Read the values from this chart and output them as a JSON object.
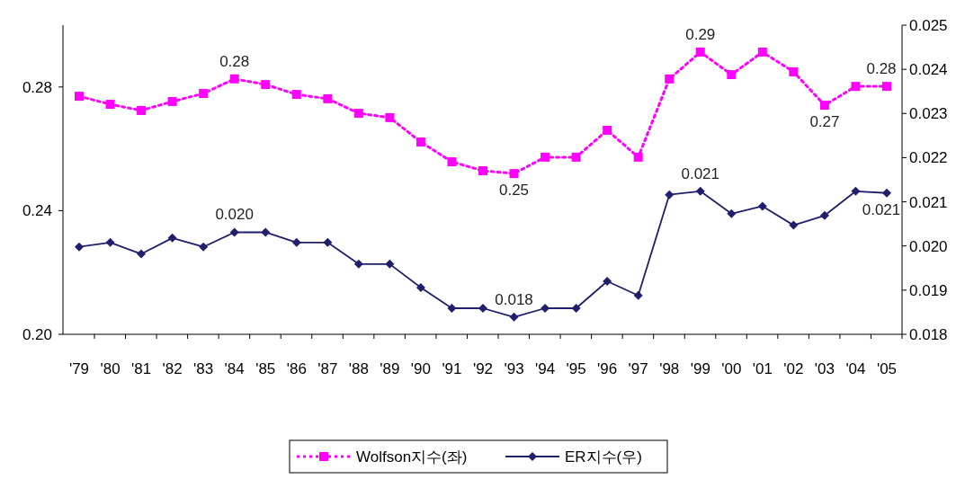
{
  "chart_data": {
    "type": "line",
    "categories": [
      "'79",
      "'80",
      "'81",
      "'82",
      "'83",
      "'84",
      "'85",
      "'86",
      "'87",
      "'88",
      "'89",
      "'90",
      "'91",
      "'92",
      "'93",
      "'94",
      "'95",
      "'96",
      "'97",
      "'98",
      "'99",
      "'00",
      "'01",
      "'02",
      "'03",
      "'04",
      "'05"
    ],
    "series": [
      {
        "name": "Wolfson지수(좌)",
        "color": "#ff00ff",
        "marker": "square",
        "line_style": "dotted",
        "values": [
          0.277,
          0.2744,
          0.2724,
          0.2753,
          0.2779,
          0.2826,
          0.2808,
          0.2776,
          0.2762,
          0.2715,
          0.2701,
          0.2622,
          0.2558,
          0.2529,
          0.252,
          0.2573,
          0.2573,
          0.266,
          0.2573,
          0.2826,
          0.2913,
          0.284,
          0.2913,
          0.2849,
          0.2741,
          0.2802,
          0.2802
        ],
        "value_labels": [
          null,
          null,
          null,
          null,
          null,
          "0.28",
          null,
          null,
          null,
          null,
          null,
          null,
          null,
          null,
          "0.25",
          null,
          null,
          null,
          null,
          null,
          "0.29",
          null,
          null,
          null,
          "0.27",
          null,
          "0.28"
        ]
      },
      {
        "name": "ER지수(우)",
        "color": "#1f1f6b",
        "marker": "diamond",
        "line_style": "solid",
        "axis": "y2",
        "values": [
          0.01998,
          0.02008,
          0.01982,
          0.02018,
          0.01998,
          0.02031,
          0.02031,
          0.02008,
          0.02008,
          0.01959,
          0.01959,
          0.01906,
          0.01859,
          0.01859,
          0.01839,
          0.01859,
          0.01859,
          0.0192,
          0.01888,
          0.02116,
          0.02124,
          0.02073,
          0.0209,
          0.02047,
          0.02069,
          0.02124,
          0.0212
        ],
        "value_labels": [
          null,
          null,
          null,
          null,
          null,
          "0.020",
          null,
          null,
          null,
          null,
          null,
          null,
          null,
          null,
          "0.018",
          null,
          null,
          null,
          null,
          null,
          "0.021",
          null,
          null,
          null,
          null,
          null,
          "0.021"
        ]
      }
    ],
    "ylim": [
      0.2,
      0.3
    ],
    "yticks": [
      {
        "value": 0.2,
        "label": "0.20"
      },
      {
        "value": 0.24,
        "label": "0.24"
      },
      {
        "value": 0.28,
        "label": "0.28"
      }
    ],
    "y2lim": [
      0.018,
      0.025
    ],
    "y2ticks": [
      0.018,
      0.019,
      {
        "value": 0.02,
        "label": "0.020"
      },
      0.021,
      0.022,
      0.023,
      0.024,
      0.025
    ],
    "grid": false,
    "legend": "bottom"
  }
}
